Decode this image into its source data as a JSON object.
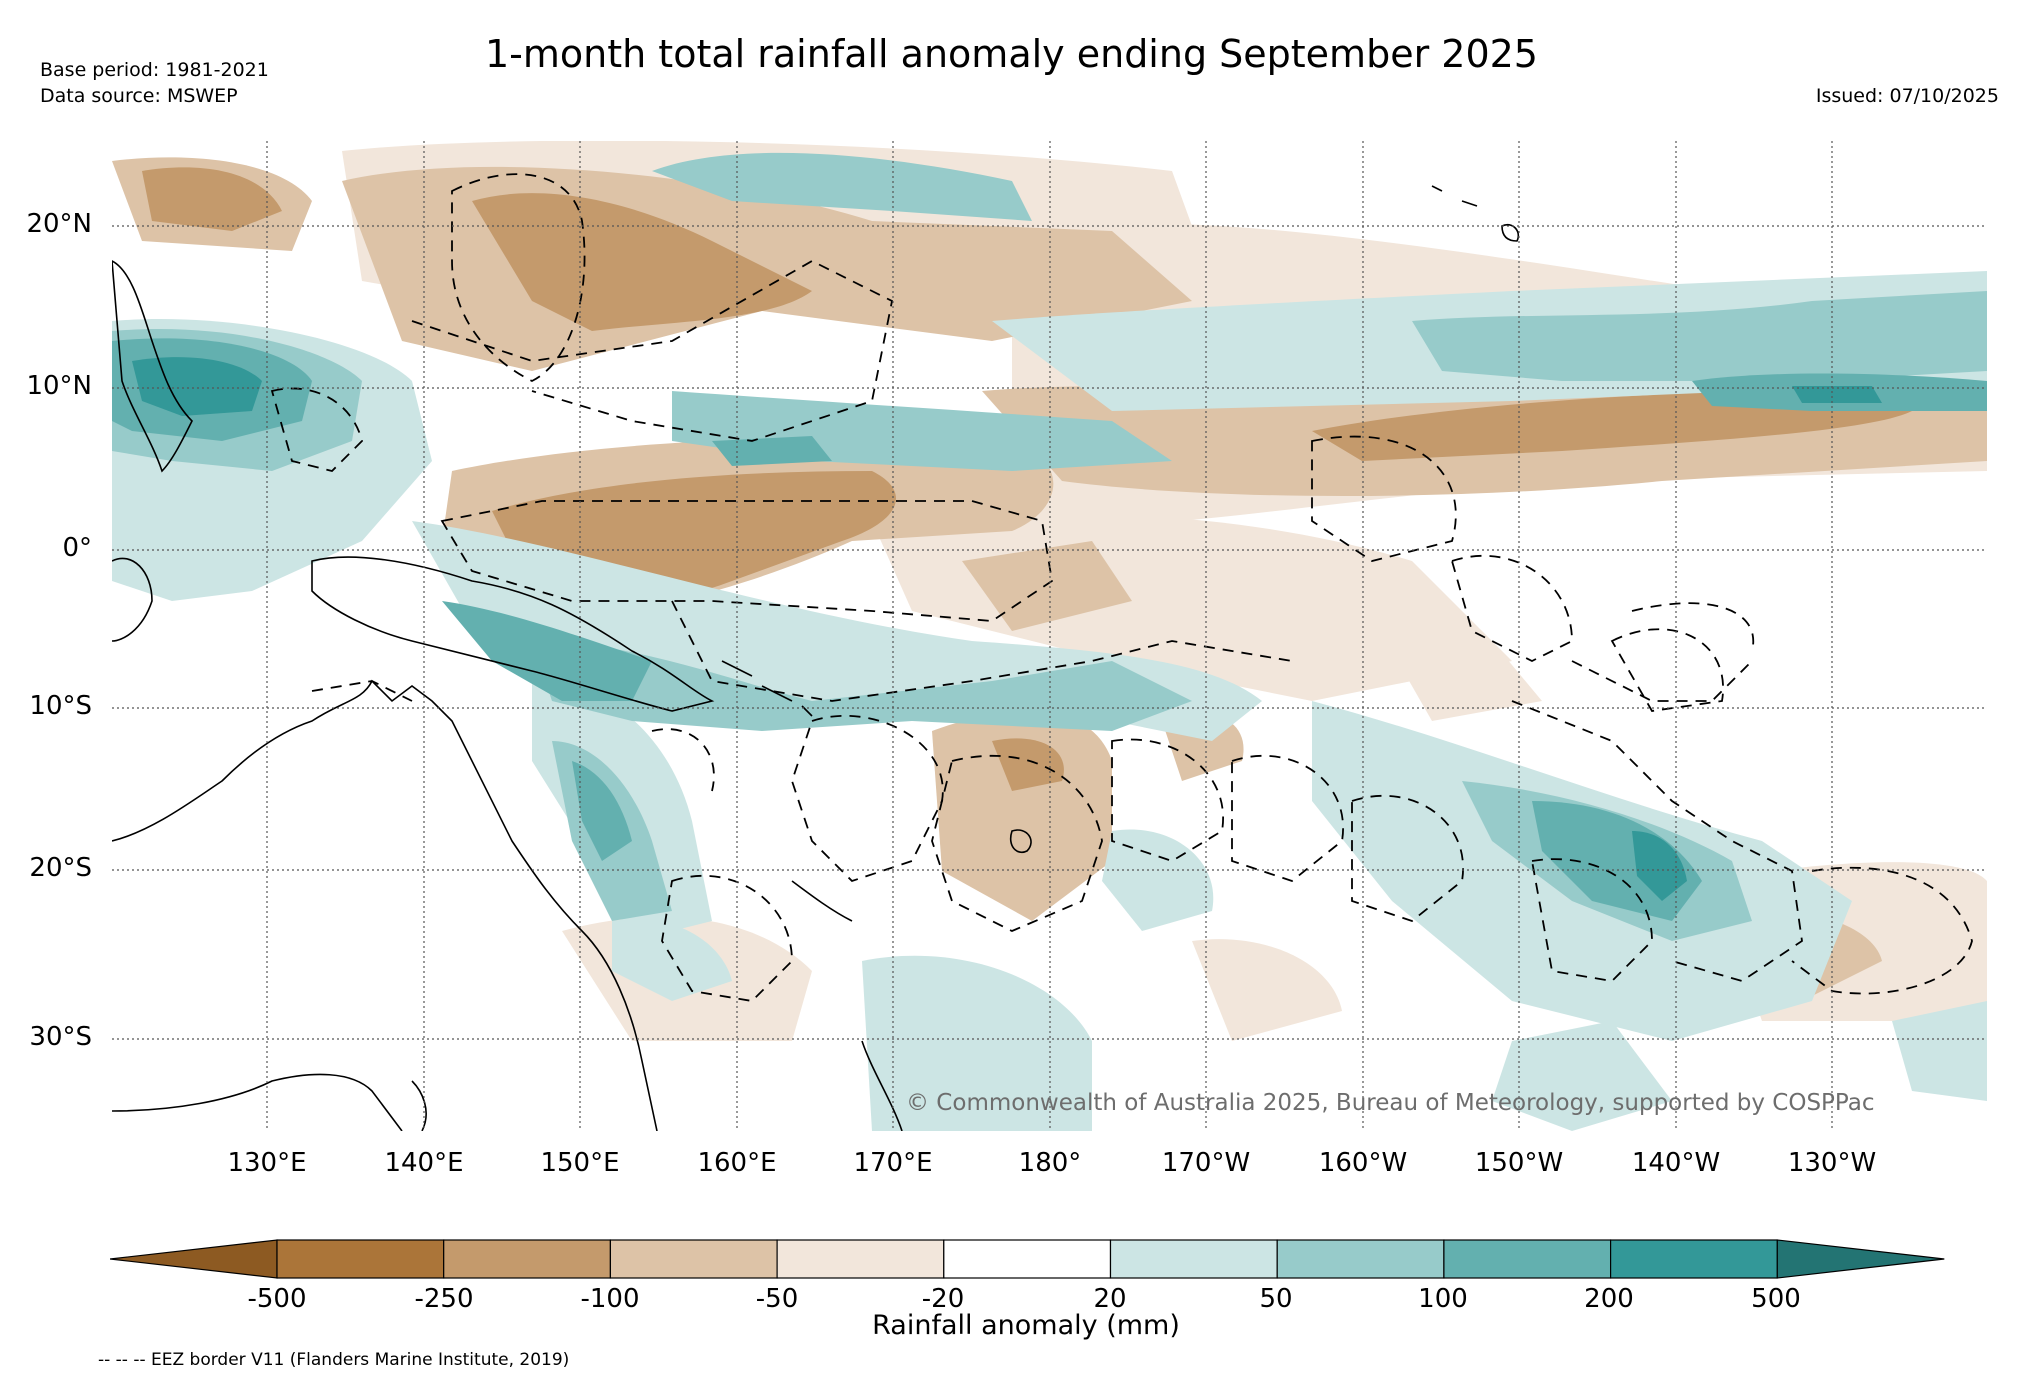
{
  "header": {
    "title": "1-month total rainfall anomaly ending September 2025",
    "base_period": "Base period: 1981-2021",
    "data_source": "Data source: MSWEP",
    "issued": "Issued: 07/10/2025"
  },
  "map": {
    "latitude_labels": [
      "20°N",
      "10°N",
      "0°",
      "10°S",
      "20°S",
      "30°S"
    ],
    "longitude_labels": [
      "130°E",
      "140°E",
      "150°E",
      "160°E",
      "170°E",
      "180°",
      "170°W",
      "160°W",
      "150°W",
      "140°W",
      "130°W"
    ],
    "copyright": "© Commonwealth of Australia 2025, Bureau of Meteorology, supported by COSPPac"
  },
  "colorbar": {
    "label": "Rainfall anomaly (mm)",
    "ticks": [
      "-500",
      "-250",
      "-100",
      "-50",
      "-20",
      "20",
      "50",
      "100",
      "200",
      "500"
    ],
    "colors": [
      "#8d5a22",
      "#ab7539",
      "#c49a6c",
      "#ddc3a7",
      "#f2e6db",
      "#ffffff",
      "#cce5e4",
      "#97cbca",
      "#63b0af",
      "#339898",
      "#237473"
    ]
  },
  "footnote": "-- -- -- EEZ border V11 (Flanders Marine Institute, 2019)"
}
